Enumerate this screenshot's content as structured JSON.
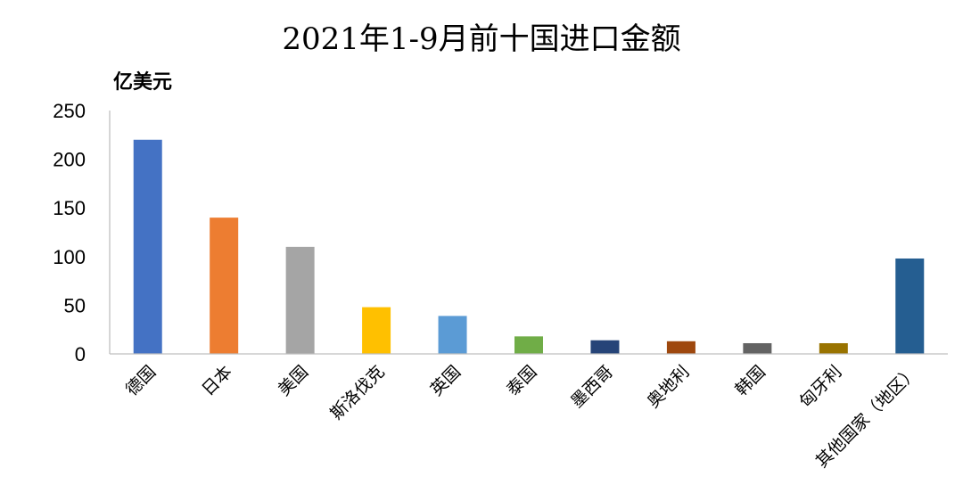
{
  "chart_data": {
    "type": "bar",
    "title": "2021年1-9月前十国进口金额",
    "ylabel": "亿美元",
    "xlabel": "",
    "ylim": [
      0,
      250
    ],
    "yticks": [
      0,
      50,
      100,
      150,
      200,
      250
    ],
    "grid": false,
    "legend": "none",
    "categories": [
      "德国",
      "日本",
      "美国",
      "斯洛伐克",
      "英国",
      "泰国",
      "墨西哥",
      "奥地利",
      "韩国",
      "匈牙利",
      "其他国家（地区）"
    ],
    "values": [
      220,
      140,
      110,
      48,
      39,
      18,
      14,
      13,
      11,
      11,
      98
    ],
    "colors": [
      "#4472C4",
      "#ED7D31",
      "#A5A5A5",
      "#FFC000",
      "#5B9BD5",
      "#70AD47",
      "#264478",
      "#9E480E",
      "#636363",
      "#997300",
      "#255E91"
    ]
  }
}
